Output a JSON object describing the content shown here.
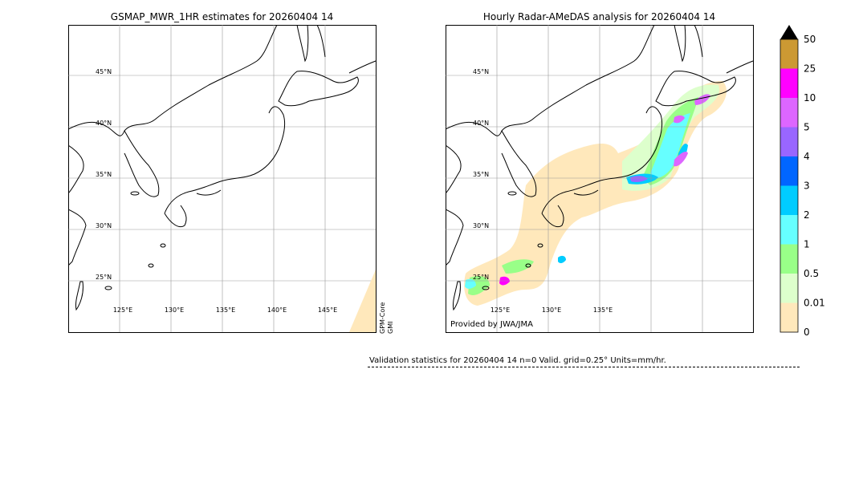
{
  "left_map": {
    "title": "GSMAP_MWR_1HR estimates for 20260404 14",
    "lat_labels": [
      "45°N",
      "40°N",
      "35°N",
      "30°N",
      "25°N"
    ],
    "lon_labels": [
      "125°E",
      "130°E",
      "135°E",
      "140°E",
      "145°E"
    ],
    "sensor_label_line1": "GPM-Core",
    "sensor_label_line2": "GMI"
  },
  "right_map": {
    "title": "Hourly Radar-AMeDAS analysis for 20260404 14",
    "lat_labels": [
      "45°N",
      "40°N",
      "35°N",
      "30°N",
      "25°N"
    ],
    "lon_labels": [
      "125°E",
      "130°E",
      "135°E"
    ],
    "credit": "Provided by JWA/JMA"
  },
  "colorbar": {
    "labels": [
      "50",
      "25",
      "10",
      "5",
      "4",
      "3",
      "2",
      "1",
      "0.5",
      "0.01",
      "0"
    ],
    "colors": [
      "#cc9933",
      "#ff00ff",
      "#dd66ff",
      "#9966ff",
      "#0066ff",
      "#00ccff",
      "#66ffff",
      "#99ff88",
      "#ddffcc",
      "#ffe8bb"
    ],
    "extend_color": "#000000"
  },
  "stats": {
    "text": "Validation statistics for 20260404 14  n=0 Valid. grid=0.25° Units=mm/hr."
  }
}
